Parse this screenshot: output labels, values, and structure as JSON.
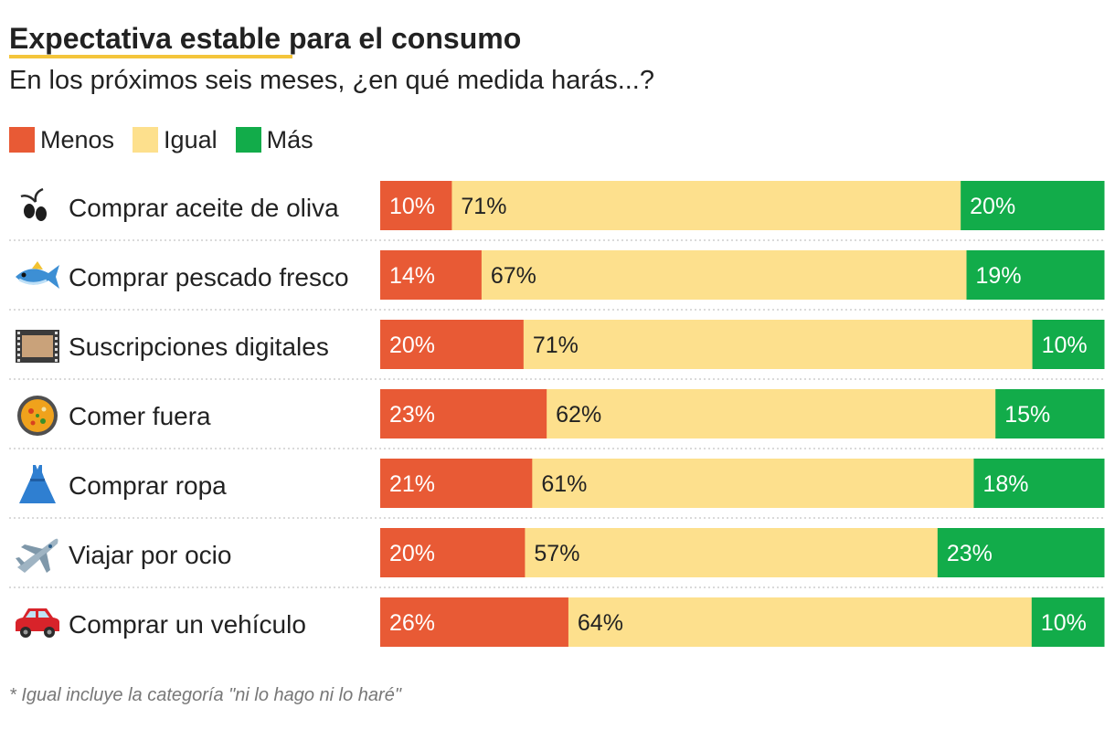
{
  "colors": {
    "menos": "#e85a35",
    "igual": "#fde08d",
    "mas": "#12ac4a",
    "title_highlight": "#f4c53b"
  },
  "chart_data": {
    "type": "bar",
    "orientation": "horizontal",
    "stacked": true,
    "title": "Expectativa estable para el consumo",
    "subtitle": "En los próximos seis meses, ¿en qué medida harás...?",
    "categories": [
      "Comprar aceite de oliva",
      "Comprar pescado fresco",
      "Suscripciones digitales",
      "Comer fuera",
      "Comprar ropa",
      "Viajar por ocio",
      "Comprar un vehículo"
    ],
    "icons": [
      "olive-icon",
      "fish-icon",
      "film-icon",
      "paella-icon",
      "dress-icon",
      "airplane-icon",
      "car-icon"
    ],
    "series": [
      {
        "name": "Menos",
        "values": [
          10,
          14,
          20,
          23,
          21,
          20,
          26
        ]
      },
      {
        "name": "Igual",
        "values": [
          71,
          67,
          71,
          62,
          61,
          57,
          64
        ]
      },
      {
        "name": "Más",
        "values": [
          20,
          19,
          10,
          15,
          18,
          23,
          10
        ]
      }
    ],
    "unit": "%",
    "legend_position": "top-left",
    "footnote": "* Igual incluye la categoría \"ni lo hago ni lo haré\""
  }
}
